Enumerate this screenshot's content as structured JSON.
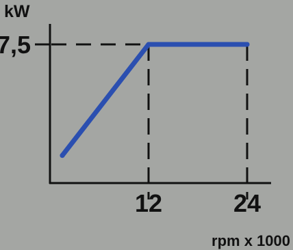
{
  "chart_data": {
    "type": "line",
    "ylabel": "kW",
    "xlabel": "rpm x 1000",
    "x_ticks": [
      {
        "value": 12,
        "label": "12"
      },
      {
        "value": 24,
        "label": "24"
      }
    ],
    "y_ticks": [
      {
        "value": 7.5,
        "label": "7,5"
      }
    ],
    "series": [
      {
        "x": [
          1.5,
          12,
          24
        ],
        "y": [
          0.85,
          7.5,
          7.5
        ]
      }
    ],
    "xlim": [
      0,
      27
    ],
    "ylim": [
      -0.8,
      7.5
    ],
    "grid": "dashed-reference-lines",
    "colors": {
      "background": "#a4a6a3",
      "axis": "#111111",
      "line": "#2b4fb0"
    }
  }
}
